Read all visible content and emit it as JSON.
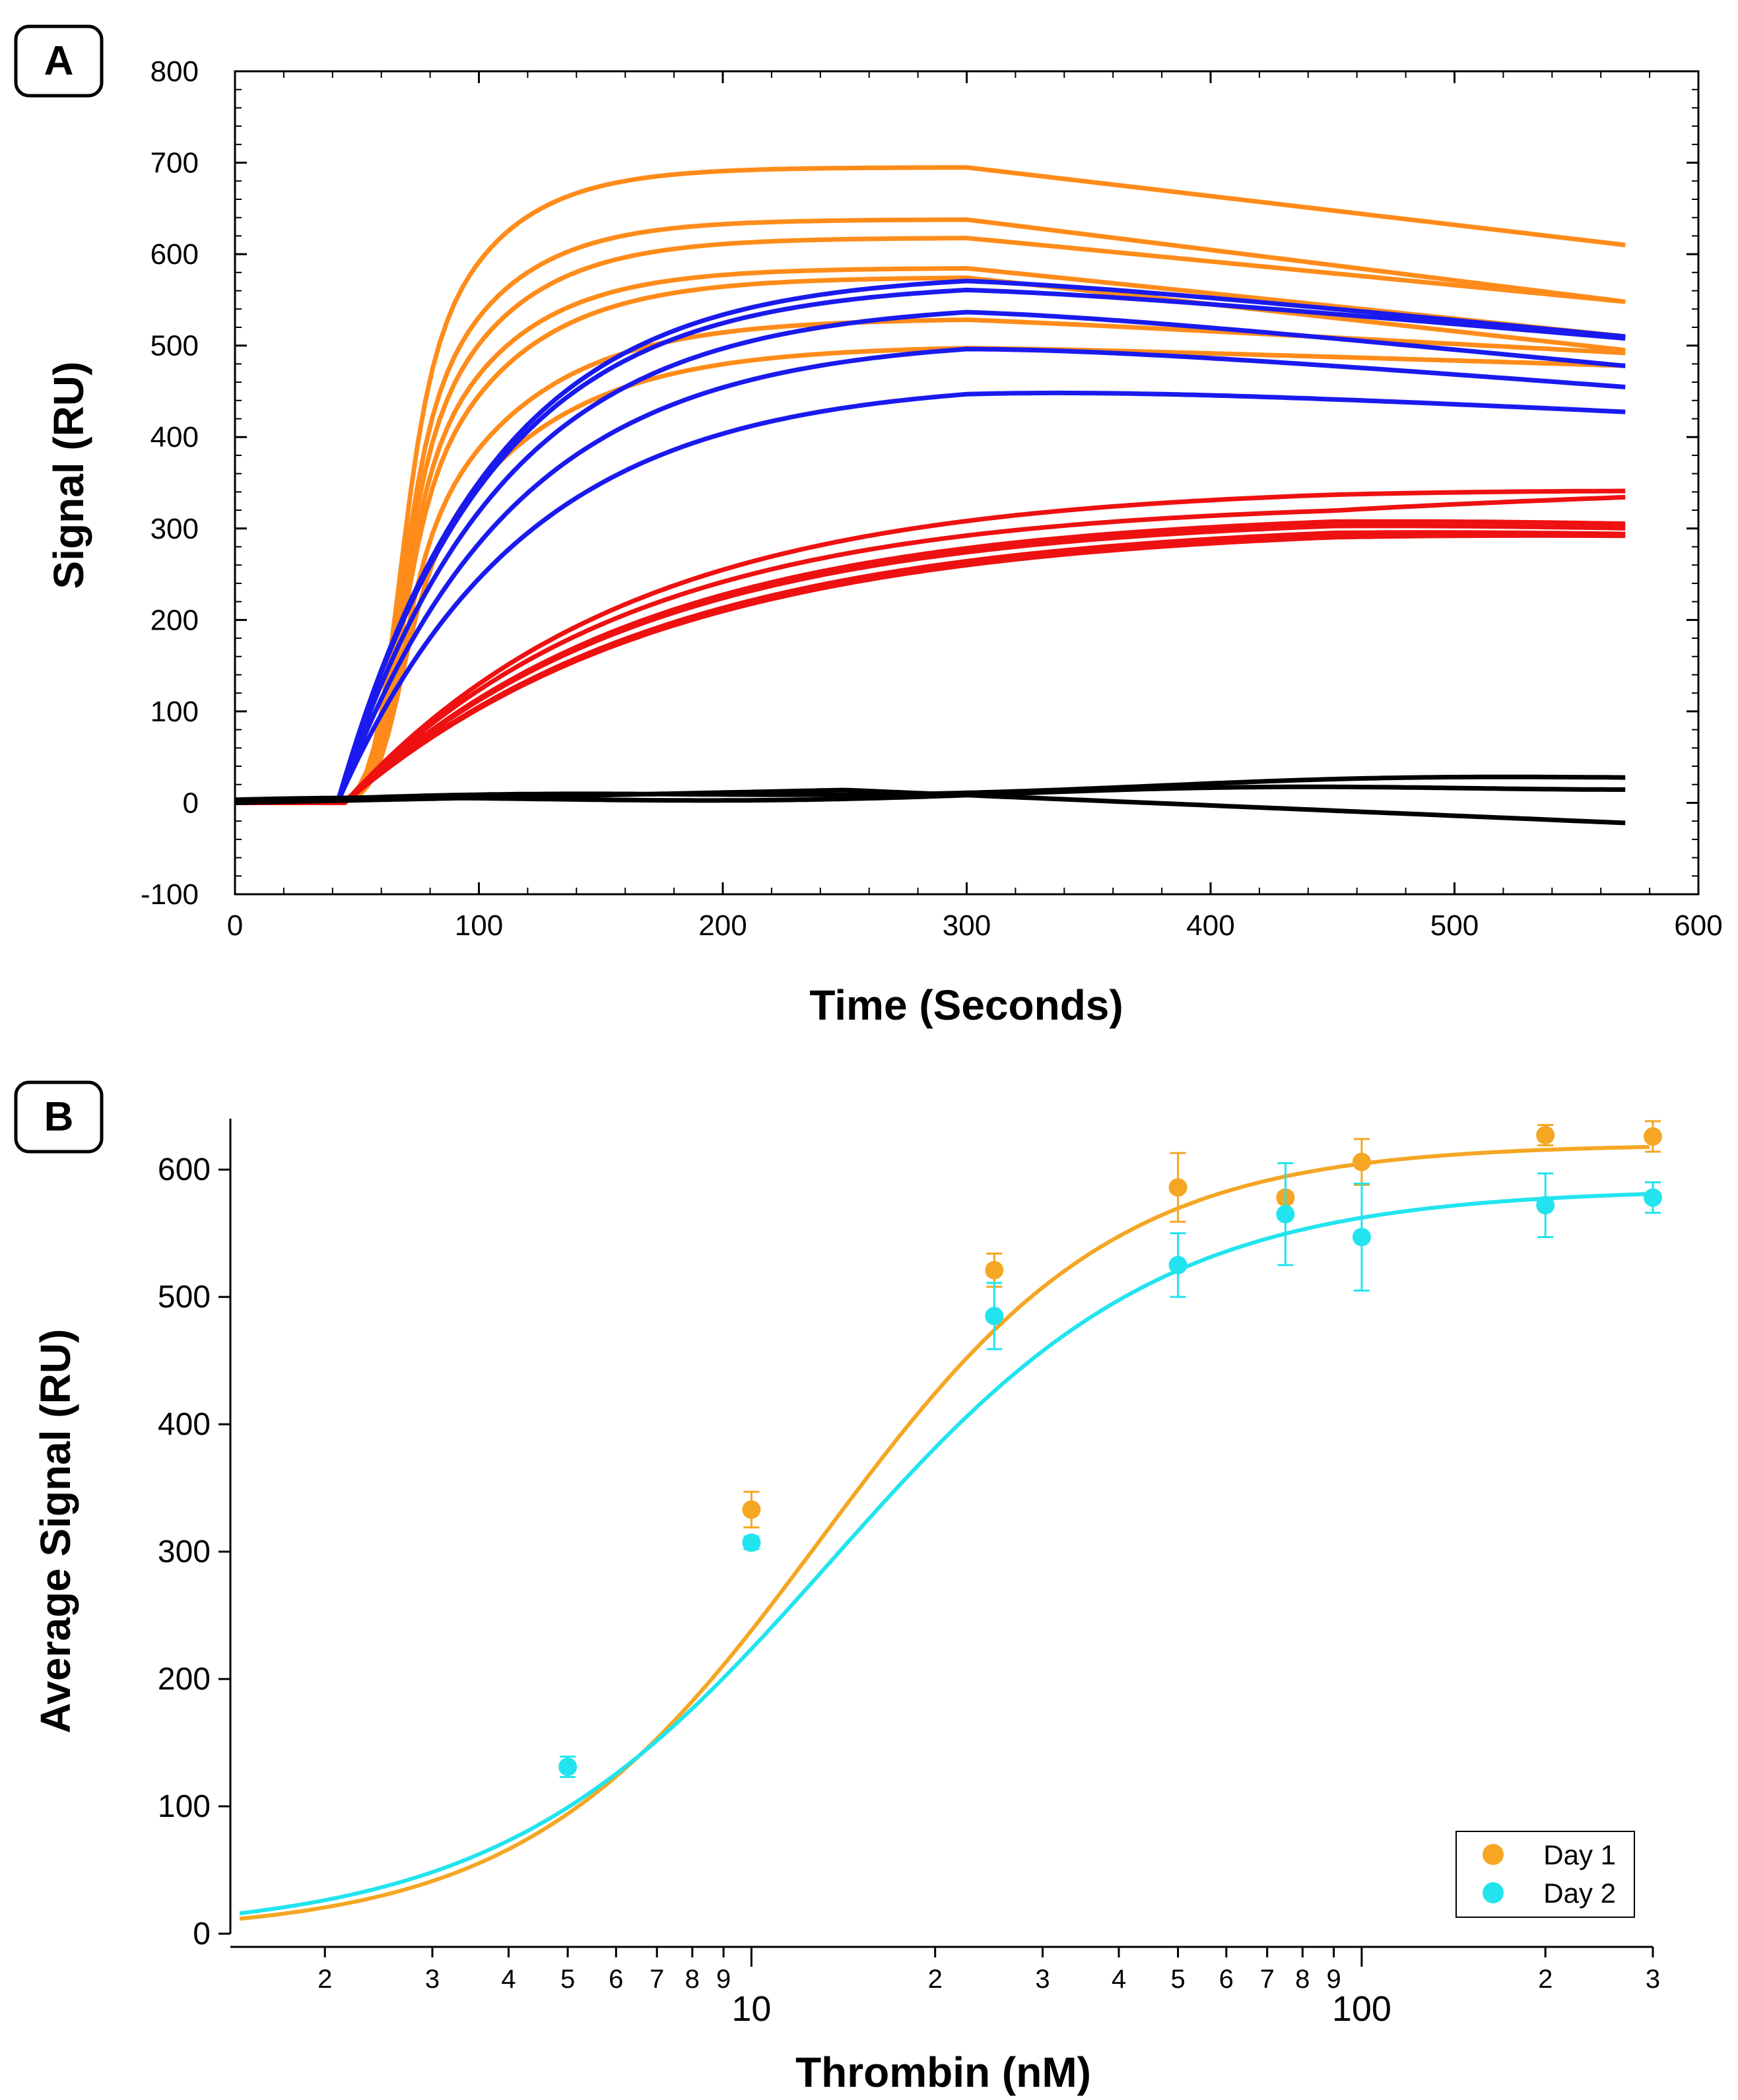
{
  "colors": {
    "orange": "#ff8c1a",
    "blue": "#1a1aee",
    "red": "#ee1111",
    "black": "#000000",
    "day1": "#f5a623",
    "day2": "#22e4ee"
  },
  "chart_data": [
    {
      "panel": "A",
      "type": "line",
      "title": "",
      "xlabel": "Time (Seconds)",
      "ylabel": "Signal (RU)",
      "xlim": [
        0,
        600
      ],
      "ylim": [
        -100,
        800
      ],
      "xticks": [
        "0",
        "100",
        "200",
        "300",
        "400",
        "500",
        "600"
      ],
      "yticks": [
        "-100",
        "0",
        "100",
        "200",
        "300",
        "400",
        "500",
        "600",
        "700",
        "800"
      ],
      "series_groups": [
        {
          "name": "orange",
          "color": "orange",
          "onset": 40,
          "count": 7,
          "peaks": [
            695,
            638,
            618,
            585,
            575,
            530,
            500
          ],
          "ends": [
            610,
            548,
            548,
            510,
            495,
            492,
            478
          ],
          "k": [
            0.032,
            0.03,
            0.028,
            0.027,
            0.025,
            0.022,
            0.02
          ]
        },
        {
          "name": "blue",
          "color": "blue",
          "onset": 42,
          "count": 5,
          "peaks": [
            580,
            570,
            548,
            510,
            463
          ],
          "ends": [
            510,
            508,
            478,
            455,
            428
          ],
          "k": [
            0.016,
            0.016,
            0.015,
            0.014,
            0.013
          ]
        },
        {
          "name": "red",
          "color": "red",
          "onset": 45,
          "count": 6,
          "peaks": [
            348,
            330,
            320,
            315,
            310,
            305
          ],
          "ends": [
            345,
            338,
            310,
            305,
            300,
            298
          ],
          "k": [
            0.0085,
            0.0085,
            0.008,
            0.008,
            0.0075,
            0.0075
          ]
        },
        {
          "name": "black",
          "color": "black",
          "onset": 0,
          "count": 3,
          "ends": [
            28,
            18,
            -22
          ]
        }
      ]
    },
    {
      "panel": "B",
      "type": "scatter",
      "title": "",
      "xlabel": "Thrombin (nM)",
      "ylabel": "Average Signal (RU)",
      "xscale": "log",
      "xlim": [
        1.4,
        300
      ],
      "ylim": [
        0,
        640
      ],
      "yticks": [
        "0",
        "100",
        "200",
        "300",
        "400",
        "500",
        "600"
      ],
      "xticks_major": [
        "10",
        "100"
      ],
      "xticks_minor": [
        "2",
        "3",
        "4",
        "5",
        "6",
        "7",
        "8",
        "9",
        "2",
        "3",
        "4",
        "5",
        "6",
        "7",
        "8",
        "9",
        "2",
        "3"
      ],
      "legend": {
        "position": "bottom-right",
        "entries": [
          "Day 1",
          "Day 2"
        ]
      },
      "series": [
        {
          "name": "Day 1",
          "color": "day1",
          "x": [
            10,
            25,
            50,
            75,
            100,
            200,
            300
          ],
          "y": [
            333,
            521,
            586,
            578,
            606,
            627,
            626
          ],
          "err": [
            14,
            13,
            27,
            4,
            18,
            8,
            12
          ],
          "fit": {
            "model": "hill",
            "ymax": 620,
            "kd": 13.0,
            "n": 1.8,
            "base": 0
          }
        },
        {
          "name": "Day 2",
          "color": "day2",
          "x": [
            5,
            10,
            25,
            50,
            75,
            100,
            200,
            300
          ],
          "y": [
            131,
            307,
            485,
            525,
            565,
            547,
            572,
            578
          ],
          "err": [
            8,
            5,
            26,
            25,
            40,
            42,
            25,
            12
          ],
          "fit": {
            "model": "hill",
            "ymax": 585,
            "kd": 13.5,
            "n": 1.6,
            "base": 0
          }
        }
      ]
    }
  ]
}
